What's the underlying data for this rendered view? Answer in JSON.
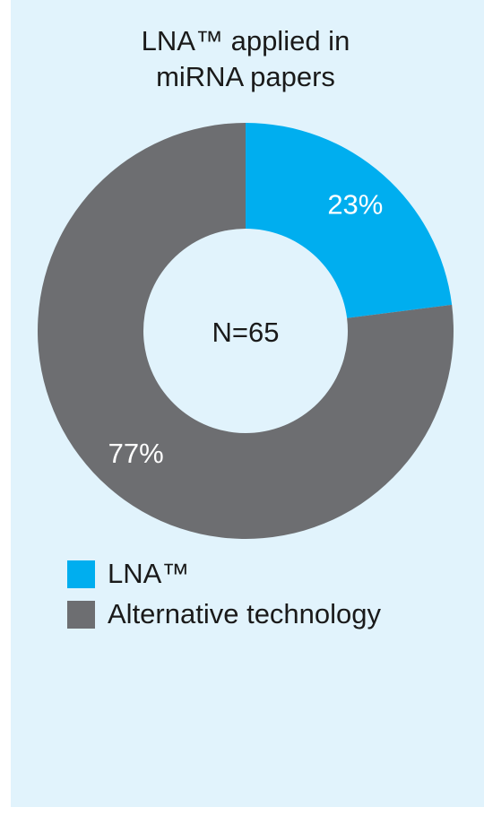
{
  "chart_data": {
    "type": "pie",
    "donut": true,
    "title": "LNA™ applied in miRNA papers",
    "annotation": "N=65",
    "categories": [
      "LNA™",
      "Alternative technology"
    ],
    "values": [
      23,
      77
    ],
    "value_labels": [
      "23%",
      "77%"
    ],
    "colors": [
      "#00aeef",
      "#6d6e71"
    ],
    "legend": "bottom-left"
  }
}
